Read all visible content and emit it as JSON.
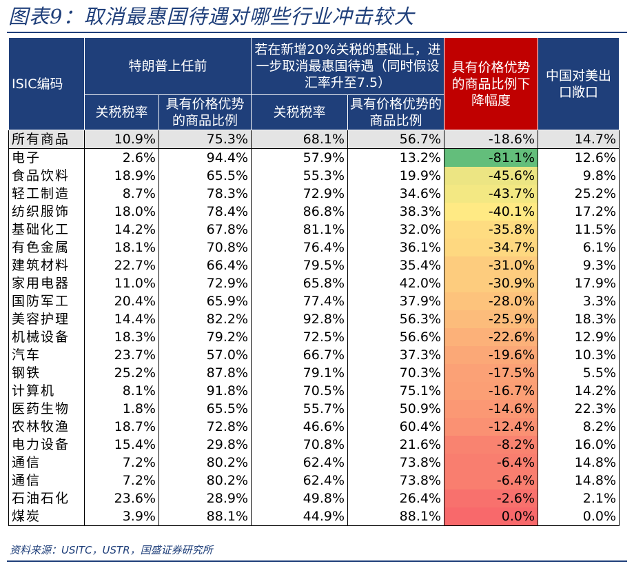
{
  "title": "图表9：取消最惠国待遇对哪些行业冲击较大",
  "header": {
    "isic": "ISIC编码",
    "group_before": "特朗普上任前",
    "group_after": "若在新增20%关税的基础上，进一步取消最惠国待遇（同时假设汇率升至7.5）",
    "sub_tariff": "关税税率",
    "sub_share": "具有价格优势的商品比例",
    "decline": "具有价格优势的商品比例下降幅度",
    "exposure": "中国对美出口敞口"
  },
  "colors": {
    "header_bg": "#1f3f7a",
    "highlight_bg": "#c00000",
    "first_row_bg": "#e4e4e4",
    "scale_low": "#63be7b",
    "scale_mid": "#ffeb84",
    "scale_high": "#f8696b"
  },
  "rows": [
    {
      "name": "所有商品",
      "tariff_before": "10.9%",
      "share_before": "75.3%",
      "tariff_after": "68.1%",
      "share_after": "56.7%",
      "decline": "-18.6%",
      "exposure": "14.7%",
      "decline_value": -18.6
    },
    {
      "name": "电子",
      "tariff_before": "2.6%",
      "share_before": "94.4%",
      "tariff_after": "57.9%",
      "share_after": "13.2%",
      "decline": "-81.1%",
      "exposure": "12.6%",
      "decline_value": -81.1
    },
    {
      "name": "食品饮料",
      "tariff_before": "18.9%",
      "share_before": "65.5%",
      "tariff_after": "55.3%",
      "share_after": "19.9%",
      "decline": "-45.6%",
      "exposure": "9.8%",
      "decline_value": -45.6
    },
    {
      "name": "轻工制造",
      "tariff_before": "8.7%",
      "share_before": "78.3%",
      "tariff_after": "72.9%",
      "share_after": "34.6%",
      "decline": "-43.7%",
      "exposure": "25.2%",
      "decline_value": -43.7
    },
    {
      "name": "纺织服饰",
      "tariff_before": "18.0%",
      "share_before": "78.4%",
      "tariff_after": "86.8%",
      "share_after": "38.3%",
      "decline": "-40.1%",
      "exposure": "17.2%",
      "decline_value": -40.1
    },
    {
      "name": "基础化工",
      "tariff_before": "14.2%",
      "share_before": "67.8%",
      "tariff_after": "81.1%",
      "share_after": "32.0%",
      "decline": "-35.8%",
      "exposure": "11.5%",
      "decline_value": -35.8
    },
    {
      "name": "有色金属",
      "tariff_before": "18.1%",
      "share_before": "70.8%",
      "tariff_after": "76.4%",
      "share_after": "36.1%",
      "decline": "-34.7%",
      "exposure": "6.1%",
      "decline_value": -34.7
    },
    {
      "name": "建筑材料",
      "tariff_before": "22.7%",
      "share_before": "66.4%",
      "tariff_after": "79.5%",
      "share_after": "35.4%",
      "decline": "-31.0%",
      "exposure": "9.3%",
      "decline_value": -31.0
    },
    {
      "name": "家用电器",
      "tariff_before": "11.0%",
      "share_before": "72.9%",
      "tariff_after": "65.8%",
      "share_after": "42.0%",
      "decline": "-30.9%",
      "exposure": "17.9%",
      "decline_value": -30.9
    },
    {
      "name": "国防军工",
      "tariff_before": "20.4%",
      "share_before": "65.9%",
      "tariff_after": "77.4%",
      "share_after": "37.9%",
      "decline": "-28.0%",
      "exposure": "3.3%",
      "decline_value": -28.0
    },
    {
      "name": "美容护理",
      "tariff_before": "14.4%",
      "share_before": "82.2%",
      "tariff_after": "92.8%",
      "share_after": "56.3%",
      "decline": "-25.9%",
      "exposure": "18.3%",
      "decline_value": -25.9
    },
    {
      "name": "机械设备",
      "tariff_before": "18.3%",
      "share_before": "79.2%",
      "tariff_after": "72.5%",
      "share_after": "56.6%",
      "decline": "-22.6%",
      "exposure": "12.9%",
      "decline_value": -22.6
    },
    {
      "name": "汽车",
      "tariff_before": "23.7%",
      "share_before": "57.0%",
      "tariff_after": "66.7%",
      "share_after": "37.3%",
      "decline": "-19.6%",
      "exposure": "10.3%",
      "decline_value": -19.6
    },
    {
      "name": "钢铁",
      "tariff_before": "25.2%",
      "share_before": "87.8%",
      "tariff_after": "79.1%",
      "share_after": "70.3%",
      "decline": "-17.5%",
      "exposure": "5.5%",
      "decline_value": -17.5
    },
    {
      "name": "计算机",
      "tariff_before": "8.1%",
      "share_before": "91.8%",
      "tariff_after": "70.5%",
      "share_after": "75.1%",
      "decline": "-16.7%",
      "exposure": "14.2%",
      "decline_value": -16.7
    },
    {
      "name": "医药生物",
      "tariff_before": "1.8%",
      "share_before": "65.5%",
      "tariff_after": "55.7%",
      "share_after": "50.9%",
      "decline": "-14.6%",
      "exposure": "22.3%",
      "decline_value": -14.6
    },
    {
      "name": "农林牧渔",
      "tariff_before": "18.7%",
      "share_before": "72.8%",
      "tariff_after": "46.6%",
      "share_after": "60.4%",
      "decline": "-12.4%",
      "exposure": "8.2%",
      "decline_value": -12.4
    },
    {
      "name": "电力设备",
      "tariff_before": "15.4%",
      "share_before": "29.8%",
      "tariff_after": "70.8%",
      "share_after": "21.6%",
      "decline": "-8.2%",
      "exposure": "16.0%",
      "decline_value": -8.2
    },
    {
      "name": "通信",
      "tariff_before": "7.2%",
      "share_before": "80.2%",
      "tariff_after": "62.4%",
      "share_after": "73.8%",
      "decline": "-6.4%",
      "exposure": "14.8%",
      "decline_value": -6.4
    },
    {
      "name": "通信",
      "tariff_before": "7.2%",
      "share_before": "80.2%",
      "tariff_after": "62.4%",
      "share_after": "73.8%",
      "decline": "-6.4%",
      "exposure": "14.8%",
      "decline_value": -6.4
    },
    {
      "name": "石油石化",
      "tariff_before": "23.6%",
      "share_before": "28.9%",
      "tariff_after": "49.8%",
      "share_after": "26.4%",
      "decline": "-2.6%",
      "exposure": "2.1%",
      "decline_value": -2.6
    },
    {
      "name": "煤炭",
      "tariff_before": "3.9%",
      "share_before": "88.1%",
      "tariff_after": "44.9%",
      "share_after": "88.1%",
      "decline": "0.0%",
      "exposure": "0.0%",
      "decline_value": 0.0
    }
  ],
  "source": "资料来源：USITC，USTR，国盛证券研究所"
}
